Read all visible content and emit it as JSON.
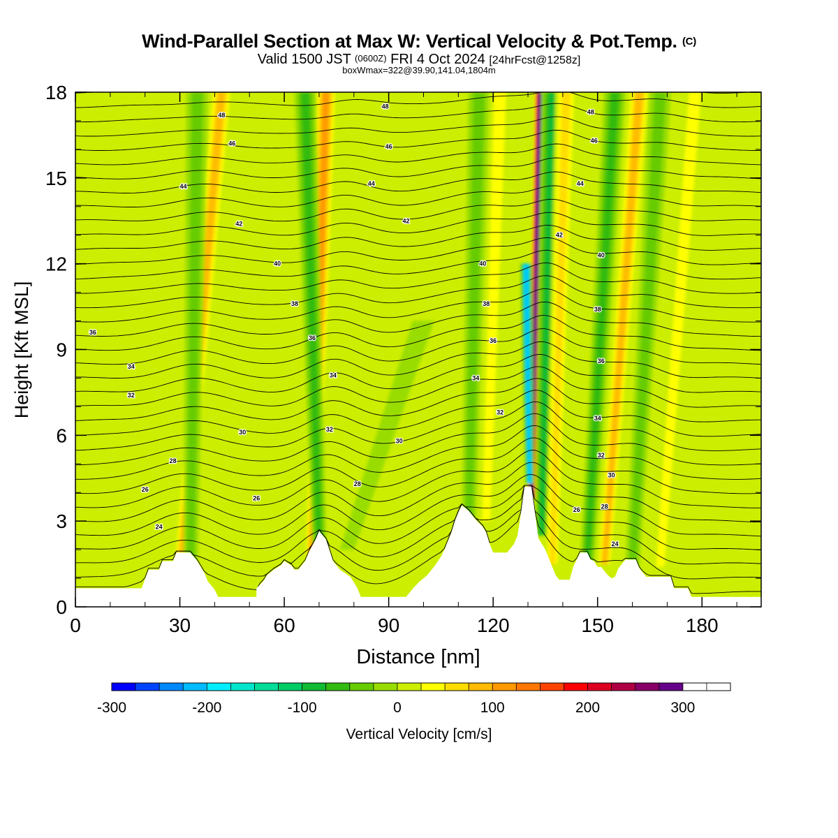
{
  "header": {
    "title": "Wind-Parallel Section at Max W: Vertical Velocity & Pot.Temp.",
    "copyright": "(C)",
    "valid_prefix": "Valid 1500 JST",
    "valid_utc": "(0600Z)",
    "valid_date": "FRI 4 Oct 2024",
    "forecast_tag": "[24hrFcst@1258z]",
    "box_note": "boxWmax=322@39.90,141.04,1804m"
  },
  "chart_data": {
    "type": "heatmap",
    "xlabel": "Distance [nm]",
    "ylabel": "Height [Kft MSL]",
    "xlim": [
      0,
      197
    ],
    "ylim": [
      0,
      18
    ],
    "x_ticks": [
      0,
      30,
      60,
      90,
      120,
      150,
      180
    ],
    "y_ticks": [
      0,
      3,
      6,
      9,
      12,
      15,
      18
    ],
    "colorbar": {
      "label": "Vertical Velocity [cm/s]",
      "range": [
        -300,
        350
      ],
      "step": 25,
      "tick_values": [
        -300,
        -200,
        -100,
        0,
        100,
        200,
        300
      ],
      "colors": [
        "#0000ff",
        "#0044ff",
        "#0088ff",
        "#00bbff",
        "#00eeff",
        "#00e6cc",
        "#00dd99",
        "#00cc66",
        "#11bb33",
        "#33bb11",
        "#66cc00",
        "#99dd00",
        "#ccee00",
        "#ffff00",
        "#ffdd00",
        "#ffbb00",
        "#ff9900",
        "#ff7700",
        "#ff4400",
        "#ff0000",
        "#dd0022",
        "#b00044",
        "#880066",
        "#660088"
      ]
    },
    "terrain": [
      [
        0,
        0.65
      ],
      [
        10,
        0.65
      ],
      [
        19,
        0.65
      ],
      [
        21,
        1.3
      ],
      [
        24,
        1.3
      ],
      [
        25,
        1.6
      ],
      [
        28,
        1.6
      ],
      [
        29,
        1.9
      ],
      [
        33,
        1.9
      ],
      [
        35,
        1.6
      ],
      [
        37,
        1.2
      ],
      [
        38,
        0.9
      ],
      [
        40,
        0.6
      ],
      [
        41,
        0.35
      ],
      [
        52,
        0.35
      ],
      [
        52,
        0.65
      ],
      [
        54,
        0.9
      ],
      [
        55,
        1.1
      ],
      [
        57,
        1.3
      ],
      [
        59,
        1.45
      ],
      [
        60,
        1.6
      ],
      [
        62,
        1.45
      ],
      [
        63,
        1.3
      ],
      [
        64,
        1.3
      ],
      [
        66,
        1.6
      ],
      [
        67,
        1.9
      ],
      [
        69,
        2.35
      ],
      [
        70,
        2.65
      ],
      [
        72,
        2.35
      ],
      [
        74,
        1.6
      ],
      [
        76,
        1.3
      ],
      [
        79,
        1.05
      ],
      [
        81,
        0.65
      ],
      [
        82,
        0.35
      ],
      [
        95,
        0.35
      ],
      [
        97,
        0.65
      ],
      [
        99,
        0.9
      ],
      [
        101,
        1.1
      ],
      [
        103,
        1.4
      ],
      [
        105,
        1.75
      ],
      [
        106,
        2.0
      ],
      [
        107,
        2.3
      ],
      [
        108,
        2.6
      ],
      [
        109,
        3.0
      ],
      [
        110,
        3.3
      ],
      [
        111,
        3.55
      ],
      [
        113,
        3.35
      ],
      [
        115,
        3.05
      ],
      [
        117,
        2.8
      ],
      [
        118,
        2.6
      ],
      [
        119,
        2.2
      ],
      [
        120,
        1.9
      ],
      [
        124,
        1.9
      ],
      [
        126,
        2.2
      ],
      [
        127,
        2.5
      ],
      [
        128,
        3.3
      ],
      [
        129,
        4.2
      ],
      [
        131,
        4.2
      ],
      [
        132,
        3.3
      ],
      [
        133,
        2.4
      ],
      [
        134,
        2.2
      ],
      [
        135,
        2.0
      ],
      [
        136,
        1.7
      ],
      [
        137,
        1.4
      ],
      [
        138,
        1.1
      ],
      [
        139,
        0.95
      ],
      [
        142,
        0.95
      ],
      [
        143,
        1.4
      ],
      [
        144,
        1.65
      ],
      [
        145,
        1.9
      ],
      [
        147,
        1.9
      ],
      [
        148,
        1.65
      ],
      [
        149,
        1.6
      ],
      [
        150,
        1.4
      ],
      [
        151,
        1.4
      ],
      [
        153,
        1.1
      ],
      [
        154,
        1.0
      ],
      [
        155,
        1.05
      ],
      [
        156,
        1.35
      ],
      [
        158,
        1.65
      ],
      [
        161,
        1.65
      ],
      [
        162,
        1.35
      ],
      [
        164,
        1.05
      ],
      [
        171,
        1.05
      ],
      [
        172,
        0.65
      ],
      [
        176,
        0.65
      ],
      [
        177,
        0.35
      ],
      [
        197,
        0.35
      ]
    ],
    "plumes": [
      {
        "base_x": 30,
        "base_z": 1.0,
        "top_x": 42,
        "top_z": 18,
        "w": 100
      },
      {
        "base_x": 33,
        "base_z": 1.0,
        "top_x": 35,
        "top_z": 18,
        "w": -60
      },
      {
        "base_x": 20,
        "base_z": 1.0,
        "top_x": 27,
        "top_z": 10,
        "w": 35
      },
      {
        "base_x": 68,
        "base_z": 1.6,
        "top_x": 72,
        "top_z": 18,
        "w": 120
      },
      {
        "base_x": 70,
        "base_z": 2.2,
        "top_x": 66,
        "top_z": 18,
        "w": -70
      },
      {
        "base_x": 78,
        "base_z": 2.0,
        "top_x": 100,
        "top_z": 10,
        "w": -20
      },
      {
        "base_x": 113,
        "base_z": 3.0,
        "top_x": 116,
        "top_z": 18,
        "w": -45
      },
      {
        "base_x": 118,
        "base_z": 3.0,
        "top_x": 122,
        "top_z": 18,
        "w": 45
      },
      {
        "base_x": 131,
        "base_z": 3.8,
        "top_x": 133.5,
        "top_z": 18,
        "w": 320
      },
      {
        "base_x": 130.5,
        "base_z": 4.3,
        "top_x": 129.5,
        "top_z": 12,
        "w": -230
      },
      {
        "base_x": 134,
        "base_z": 2.5,
        "top_x": 137,
        "top_z": 18,
        "w": -100
      },
      {
        "base_x": 137,
        "base_z": 1.5,
        "top_x": 141,
        "top_z": 18,
        "w": 70
      },
      {
        "base_x": 147,
        "base_z": 1.5,
        "top_x": 155,
        "top_z": 18,
        "w": -70
      },
      {
        "base_x": 152,
        "base_z": 1.5,
        "top_x": 162,
        "top_z": 18,
        "w": 100
      },
      {
        "base_x": 160,
        "base_z": 1.4,
        "top_x": 168,
        "top_z": 18,
        "w": -50
      },
      {
        "base_x": 168,
        "base_z": 1.4,
        "top_x": 178,
        "top_z": 18,
        "w": 40
      }
    ],
    "theta_labels": [
      {
        "value": "48",
        "x": 42,
        "y": 17.2
      },
      {
        "value": "48",
        "x": 89,
        "y": 17.5
      },
      {
        "value": "48",
        "x": 148,
        "y": 17.3
      },
      {
        "value": "46",
        "x": 45,
        "y": 16.2
      },
      {
        "value": "46",
        "x": 90,
        "y": 16.1
      },
      {
        "value": "46",
        "x": 149,
        "y": 16.3
      },
      {
        "value": "44",
        "x": 31,
        "y": 14.7
      },
      {
        "value": "44",
        "x": 85,
        "y": 14.8
      },
      {
        "value": "44",
        "x": 145,
        "y": 14.8
      },
      {
        "value": "42",
        "x": 47,
        "y": 13.4
      },
      {
        "value": "42",
        "x": 95,
        "y": 13.5
      },
      {
        "value": "42",
        "x": 139,
        "y": 13.0
      },
      {
        "value": "40",
        "x": 58,
        "y": 12.0
      },
      {
        "value": "40",
        "x": 117,
        "y": 12.0
      },
      {
        "value": "40",
        "x": 151,
        "y": 12.3
      },
      {
        "value": "38",
        "x": 63,
        "y": 10.6
      },
      {
        "value": "38",
        "x": 118,
        "y": 10.6
      },
      {
        "value": "38",
        "x": 150,
        "y": 10.4
      },
      {
        "value": "36",
        "x": 5,
        "y": 9.6
      },
      {
        "value": "36",
        "x": 68,
        "y": 9.4
      },
      {
        "value": "36",
        "x": 120,
        "y": 9.3
      },
      {
        "value": "36",
        "x": 151,
        "y": 8.6
      },
      {
        "value": "34",
        "x": 16,
        "y": 8.4
      },
      {
        "value": "34",
        "x": 74,
        "y": 8.1
      },
      {
        "value": "34",
        "x": 115,
        "y": 8.0
      },
      {
        "value": "34",
        "x": 150,
        "y": 6.6
      },
      {
        "value": "32",
        "x": 16,
        "y": 7.4
      },
      {
        "value": "32",
        "x": 73,
        "y": 6.2
      },
      {
        "value": "32",
        "x": 122,
        "y": 6.8
      },
      {
        "value": "32",
        "x": 151,
        "y": 5.3
      },
      {
        "value": "30",
        "x": 48,
        "y": 6.1
      },
      {
        "value": "30",
        "x": 93,
        "y": 5.8
      },
      {
        "value": "30",
        "x": 154,
        "y": 4.6
      },
      {
        "value": "28",
        "x": 28,
        "y": 5.1
      },
      {
        "value": "28",
        "x": 81,
        "y": 4.3
      },
      {
        "value": "28",
        "x": 152,
        "y": 3.5
      },
      {
        "value": "26",
        "x": 20,
        "y": 4.1
      },
      {
        "value": "26",
        "x": 52,
        "y": 3.8
      },
      {
        "value": "26",
        "x": 144,
        "y": 3.4
      },
      {
        "value": "24",
        "x": 24,
        "y": 2.8
      },
      {
        "value": "24",
        "x": 155,
        "y": 2.2
      }
    ]
  }
}
